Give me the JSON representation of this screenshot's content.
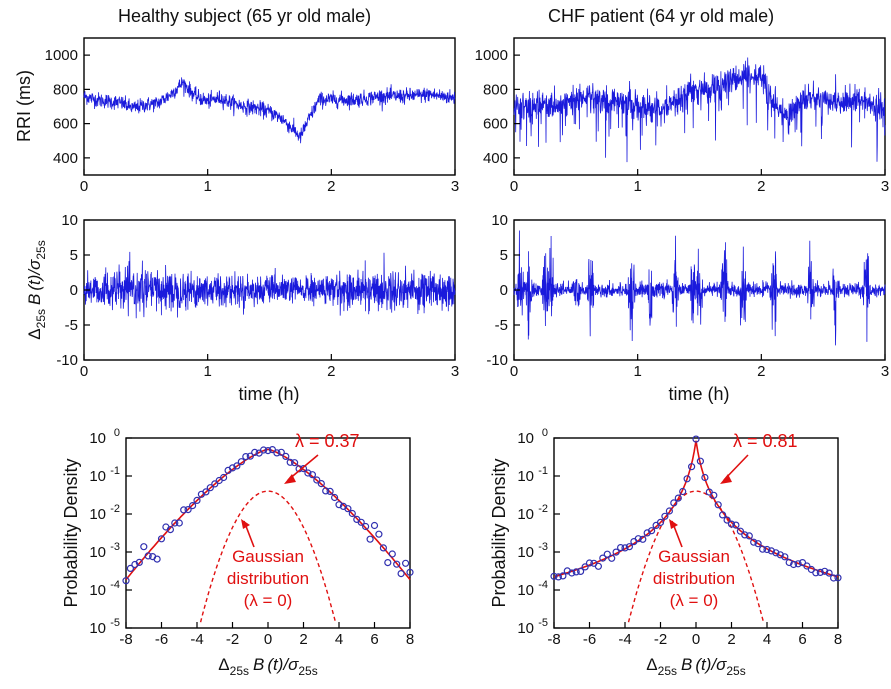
{
  "colors": {
    "signal": "#1a1adc",
    "fit": "#e01010",
    "gaussian": "#e01010",
    "points": "#3030b0",
    "text": "#111111",
    "annot": "#e01010"
  },
  "titles": {
    "left": "Healthy subject (65 yr old male)",
    "right": "CHF patient (64 yr old male)"
  },
  "labels": {
    "rri_ylabel": "RRI (ms)",
    "incr_ylabel_delta": "Δ",
    "incr_ylabel_sub": "25s",
    "incr_ylabel_b": "B",
    "incr_ylabel_t": "(t)/σ",
    "time_xlabel": "time (h)",
    "pdf_ylabel": "Probability Density",
    "pdf_xlabel_delta": "Δ",
    "pdf_xlabel_sub": "25s",
    "pdf_xlabel_b": "B",
    "pdf_xlabel_t": "(t)/σ",
    "left_lambda": "λ = 0.37",
    "right_lambda": "λ = 0.81",
    "gauss_line1": "Gaussian",
    "gauss_line2": "distribution",
    "gauss_line3": "(λ = 0)"
  },
  "chart_data": [
    {
      "id": "rri-healthy",
      "type": "line",
      "title": "Healthy subject (65 yr old male)",
      "xlabel": "",
      "ylabel": "RRI (ms)",
      "xlim": [
        0,
        3
      ],
      "ylim": [
        300,
        1100
      ],
      "xticks": [
        0,
        1,
        2,
        3
      ],
      "yticks": [
        400,
        600,
        800,
        1000
      ],
      "series": [
        {
          "x": [
            0,
            0.1,
            0.2,
            0.3,
            0.4,
            0.5,
            0.6,
            0.7,
            0.8,
            0.9,
            1.0,
            1.1,
            1.2,
            1.3,
            1.4,
            1.5,
            1.6,
            1.7,
            1.75,
            1.8,
            1.9,
            2.0,
            2.2,
            2.4,
            2.6,
            2.8,
            3.0
          ],
          "values": [
            760,
            740,
            730,
            720,
            690,
            710,
            720,
            770,
            840,
            760,
            730,
            750,
            720,
            700,
            690,
            670,
            630,
            560,
            520,
            600,
            740,
            740,
            740,
            760,
            760,
            770,
            750
          ]
        }
      ]
    },
    {
      "id": "rri-chf",
      "type": "line",
      "title": "CHF patient (64 yr old male)",
      "xlabel": "",
      "ylabel": "",
      "xlim": [
        0,
        3
      ],
      "ylim": [
        300,
        1100
      ],
      "xticks": [
        0,
        1,
        2,
        3
      ],
      "yticks": [
        400,
        600,
        800,
        1000
      ],
      "series": [
        {
          "x": [
            0,
            0.2,
            0.4,
            0.6,
            0.8,
            1.0,
            1.2,
            1.4,
            1.6,
            1.8,
            2.0,
            2.1,
            2.2,
            2.4,
            2.6,
            2.8,
            3.0
          ],
          "values": [
            700,
            700,
            720,
            760,
            720,
            700,
            680,
            780,
            810,
            860,
            870,
            720,
            650,
            760,
            720,
            740,
            680
          ]
        }
      ]
    },
    {
      "id": "incr-healthy",
      "type": "line",
      "xlabel": "time (h)",
      "ylabel": "Δ25s B(t)/σ25s",
      "xlim": [
        0,
        3
      ],
      "ylim": [
        -10,
        10
      ],
      "xticks": [
        0,
        1,
        2,
        3
      ],
      "yticks": [
        -10,
        -5,
        0,
        5,
        10
      ],
      "noise": "gaussian, amplitude ≈ 3"
    },
    {
      "id": "incr-chf",
      "type": "line",
      "xlabel": "time (h)",
      "ylabel": "",
      "xlim": [
        0,
        3
      ],
      "ylim": [
        -10,
        10
      ],
      "xticks": [
        0,
        1,
        2,
        3
      ],
      "yticks": [
        -10,
        -5,
        0,
        5,
        10
      ],
      "noise": "intermittent bursts, peaks ≈ 8"
    },
    {
      "id": "pdf-healthy",
      "type": "scatter",
      "xlabel": "Δ25s B(t)/σ25s",
      "ylabel": "Probability Density",
      "xlim": [
        -8,
        8
      ],
      "ylim": [
        1e-05,
        1
      ],
      "yscale": "log",
      "xticks": [
        -8,
        -6,
        -4,
        -2,
        0,
        2,
        4,
        6,
        8
      ],
      "yticks": [
        "10^0",
        "10^-1",
        "10^-2",
        "10^-3",
        "10^-4",
        "10^-5"
      ],
      "lambda": 0.37,
      "peak": 0.5,
      "gaussian_peak": 0.04
    },
    {
      "id": "pdf-chf",
      "type": "scatter",
      "xlabel": "Δ25s B(t)/σ25s",
      "ylabel": "Probability Density",
      "xlim": [
        -8,
        8
      ],
      "ylim": [
        1e-05,
        1
      ],
      "yscale": "log",
      "xticks": [
        -8,
        -6,
        -4,
        -2,
        0,
        2,
        4,
        6,
        8
      ],
      "yticks": [
        "10^0",
        "10^-1",
        "10^-2",
        "10^-3",
        "10^-4",
        "10^-5"
      ],
      "lambda": 0.81,
      "peak": 0.85,
      "gaussian_peak": 0.04
    }
  ]
}
